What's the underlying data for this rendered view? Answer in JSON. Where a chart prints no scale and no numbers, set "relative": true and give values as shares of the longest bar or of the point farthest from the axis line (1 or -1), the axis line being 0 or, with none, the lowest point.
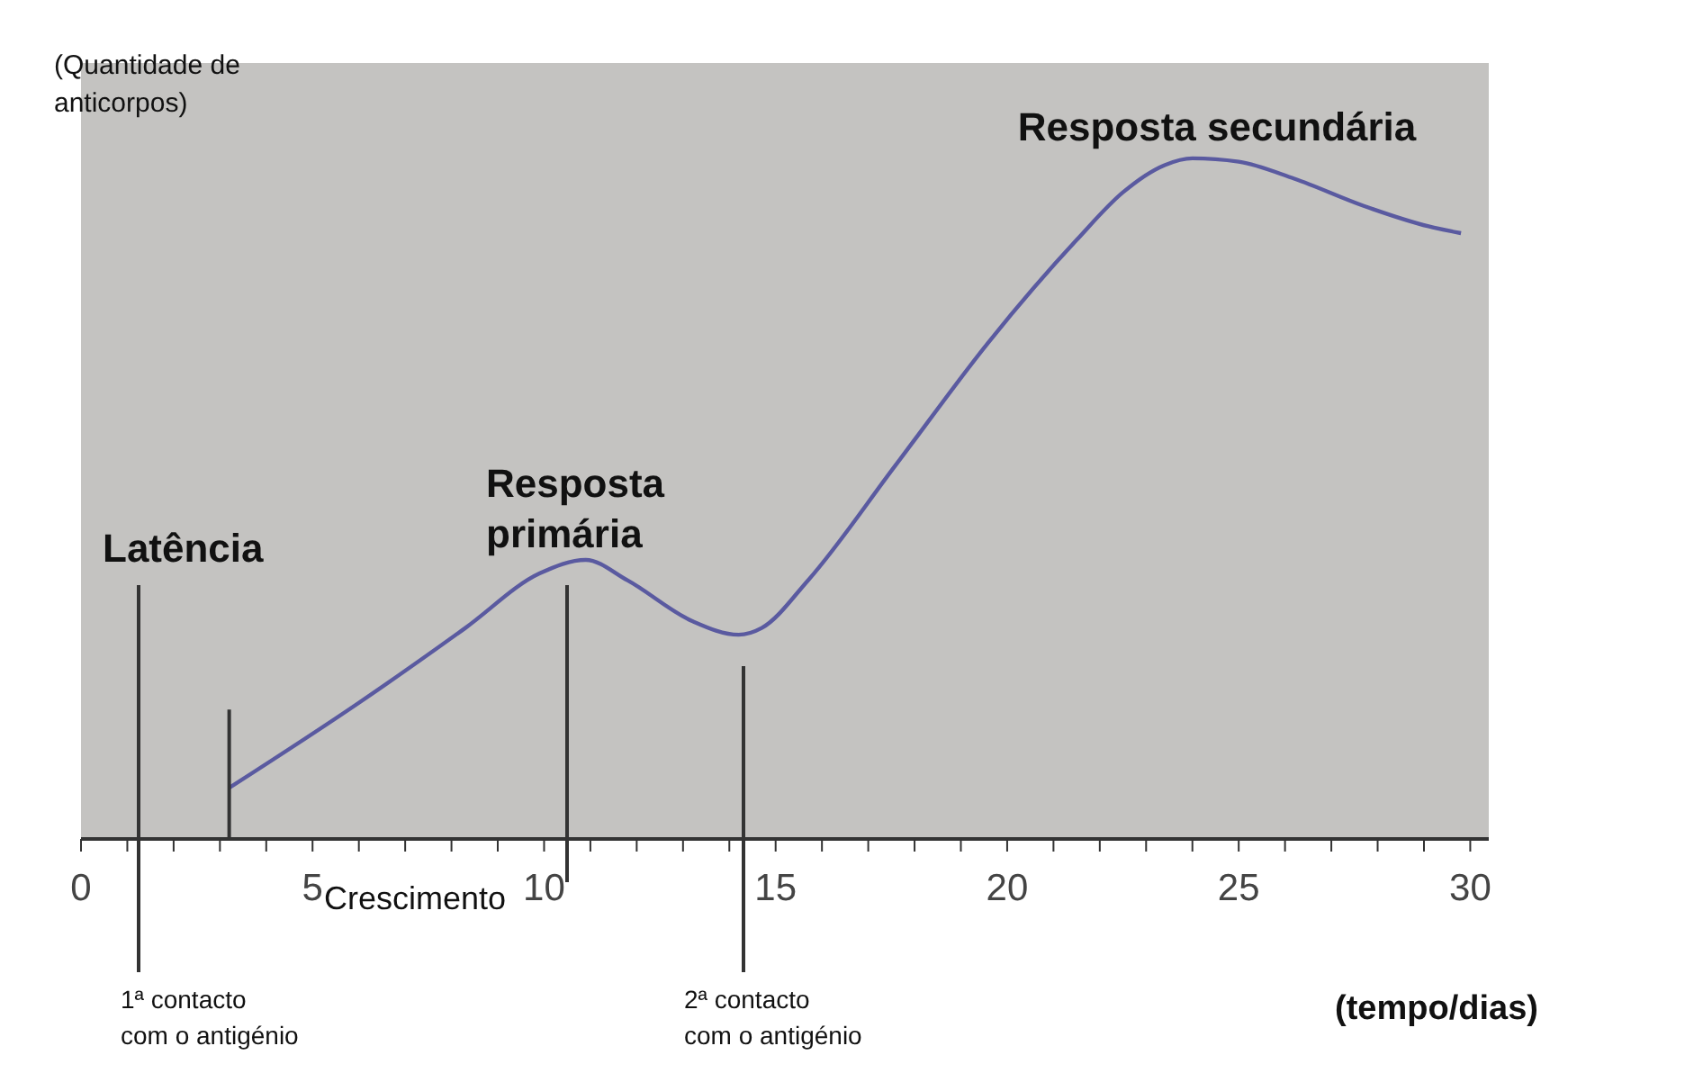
{
  "chart_data": {
    "type": "line",
    "relative": true,
    "ylabel": "(Quantidade de anticorpos)",
    "xlabel": "(tempo/dias)",
    "x": [
      3.2,
      6.0,
      8.3,
      9.9,
      10.9,
      11.8,
      13.2,
      14.2,
      14.7,
      15.7,
      17.6,
      19.6,
      21.5,
      22.5,
      23.4,
      24.0,
      25.0,
      26.2,
      27.7,
      29.1,
      29.8
    ],
    "series": [
      {
        "color": "#5a5aa0",
        "values": [
          0.075,
          0.2,
          0.31,
          0.39,
          0.41,
          0.38,
          0.32,
          0.3,
          0.31,
          0.38,
          0.55,
          0.73,
          0.88,
          0.95,
          0.99,
          1.0,
          0.995,
          0.97,
          0.93,
          0.9,
          0.89
        ]
      }
    ],
    "xlim": [
      0,
      30.4
    ],
    "xticks": [
      0,
      {
        "value": 1,
        "label": null
      },
      {
        "value": 2,
        "label": null
      },
      {
        "value": 3,
        "label": null
      },
      {
        "value": 4,
        "label": null
      },
      5,
      {
        "value": 6,
        "label": null
      },
      {
        "value": 7,
        "label": null
      },
      {
        "value": 8,
        "label": null
      },
      {
        "value": 9,
        "label": null
      },
      10,
      {
        "value": 11,
        "label": null
      },
      {
        "value": 12,
        "label": null
      },
      {
        "value": 13,
        "label": null
      },
      {
        "value": 14,
        "label": null
      },
      15,
      {
        "value": 16,
        "label": null
      },
      {
        "value": 17,
        "label": null
      },
      {
        "value": 18,
        "label": null
      },
      {
        "value": 19,
        "label": null
      },
      20,
      {
        "value": 21,
        "label": null
      },
      {
        "value": 22,
        "label": null
      },
      {
        "value": 23,
        "label": null
      },
      {
        "value": 24,
        "label": null
      },
      25,
      {
        "value": 26,
        "label": null
      },
      {
        "value": 27,
        "label": null
      },
      {
        "value": 28,
        "label": null
      },
      {
        "value": 29,
        "label": null
      },
      30
    ],
    "marker": "none",
    "line_style": "solid",
    "ref_lines": [
      {
        "axis": "x",
        "value": 3.2
      }
    ],
    "annotations": [
      "Latência",
      "1ª contacto\ncom o antigénio",
      "Crescimento",
      "Resposta\nprimária",
      "2ª contacto\ncom o antigénio",
      "Resposta secundária"
    ]
  }
}
